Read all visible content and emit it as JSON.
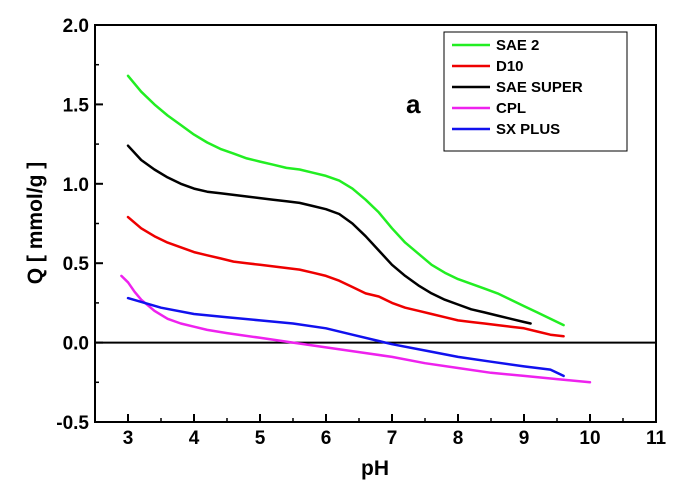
{
  "chart_data": {
    "type": "line",
    "xlabel": "pH",
    "ylabel": "Q  [ mmol/g ]",
    "xlim": [
      2.5,
      11
    ],
    "ylim": [
      -0.5,
      2.0
    ],
    "xticks": [
      3,
      4,
      5,
      6,
      7,
      8,
      9,
      10,
      11
    ],
    "yticks": [
      -0.5,
      0.0,
      0.5,
      1.0,
      1.5,
      2.0
    ],
    "xtick_labels": [
      "3",
      "4",
      "5",
      "6",
      "7",
      "8",
      "9",
      "10",
      "11"
    ],
    "ytick_labels": [
      "-0.5",
      "0.0",
      "0.5",
      "1.0",
      "1.5",
      "2.0"
    ],
    "zero_line": 0.0,
    "annotation": "a",
    "legend_position": "top-right",
    "series": [
      {
        "name": "SAE 2",
        "color": "#22ee22",
        "points": [
          [
            3.0,
            1.68
          ],
          [
            3.2,
            1.58
          ],
          [
            3.4,
            1.5
          ],
          [
            3.6,
            1.43
          ],
          [
            3.8,
            1.37
          ],
          [
            4.0,
            1.31
          ],
          [
            4.2,
            1.26
          ],
          [
            4.4,
            1.22
          ],
          [
            4.6,
            1.19
          ],
          [
            4.8,
            1.16
          ],
          [
            5.0,
            1.14
          ],
          [
            5.2,
            1.12
          ],
          [
            5.4,
            1.1
          ],
          [
            5.6,
            1.09
          ],
          [
            5.8,
            1.07
          ],
          [
            6.0,
            1.05
          ],
          [
            6.2,
            1.02
          ],
          [
            6.4,
            0.97
          ],
          [
            6.6,
            0.9
          ],
          [
            6.8,
            0.82
          ],
          [
            7.0,
            0.72
          ],
          [
            7.2,
            0.63
          ],
          [
            7.4,
            0.56
          ],
          [
            7.6,
            0.49
          ],
          [
            7.8,
            0.44
          ],
          [
            8.0,
            0.4
          ],
          [
            8.2,
            0.37
          ],
          [
            8.4,
            0.34
          ],
          [
            8.6,
            0.31
          ],
          [
            8.8,
            0.27
          ],
          [
            9.0,
            0.23
          ],
          [
            9.2,
            0.19
          ],
          [
            9.4,
            0.15
          ],
          [
            9.6,
            0.11
          ]
        ]
      },
      {
        "name": "D10",
        "color": "#ee0000",
        "points": [
          [
            3.0,
            0.79
          ],
          [
            3.2,
            0.72
          ],
          [
            3.4,
            0.67
          ],
          [
            3.6,
            0.63
          ],
          [
            3.8,
            0.6
          ],
          [
            4.0,
            0.57
          ],
          [
            4.2,
            0.55
          ],
          [
            4.4,
            0.53
          ],
          [
            4.6,
            0.51
          ],
          [
            4.8,
            0.5
          ],
          [
            5.0,
            0.49
          ],
          [
            5.2,
            0.48
          ],
          [
            5.4,
            0.47
          ],
          [
            5.6,
            0.46
          ],
          [
            5.8,
            0.44
          ],
          [
            6.0,
            0.42
          ],
          [
            6.2,
            0.39
          ],
          [
            6.4,
            0.35
          ],
          [
            6.6,
            0.31
          ],
          [
            6.8,
            0.29
          ],
          [
            7.0,
            0.25
          ],
          [
            7.2,
            0.22
          ],
          [
            7.4,
            0.2
          ],
          [
            7.6,
            0.18
          ],
          [
            7.8,
            0.16
          ],
          [
            8.0,
            0.14
          ],
          [
            8.2,
            0.13
          ],
          [
            8.4,
            0.12
          ],
          [
            8.6,
            0.11
          ],
          [
            8.8,
            0.1
          ],
          [
            9.0,
            0.09
          ],
          [
            9.2,
            0.07
          ],
          [
            9.4,
            0.05
          ],
          [
            9.6,
            0.04
          ]
        ]
      },
      {
        "name": "SAE SUPER",
        "color": "#000000",
        "points": [
          [
            3.0,
            1.24
          ],
          [
            3.2,
            1.15
          ],
          [
            3.4,
            1.09
          ],
          [
            3.6,
            1.04
          ],
          [
            3.8,
            1.0
          ],
          [
            4.0,
            0.97
          ],
          [
            4.2,
            0.95
          ],
          [
            4.4,
            0.94
          ],
          [
            4.6,
            0.93
          ],
          [
            4.8,
            0.92
          ],
          [
            5.0,
            0.91
          ],
          [
            5.2,
            0.9
          ],
          [
            5.4,
            0.89
          ],
          [
            5.6,
            0.88
          ],
          [
            5.8,
            0.86
          ],
          [
            6.0,
            0.84
          ],
          [
            6.2,
            0.81
          ],
          [
            6.4,
            0.75
          ],
          [
            6.6,
            0.67
          ],
          [
            6.8,
            0.58
          ],
          [
            7.0,
            0.49
          ],
          [
            7.2,
            0.42
          ],
          [
            7.4,
            0.36
          ],
          [
            7.6,
            0.31
          ],
          [
            7.8,
            0.27
          ],
          [
            8.0,
            0.24
          ],
          [
            8.2,
            0.21
          ],
          [
            8.4,
            0.19
          ],
          [
            8.6,
            0.17
          ],
          [
            8.8,
            0.15
          ],
          [
            9.0,
            0.13
          ],
          [
            9.1,
            0.12
          ]
        ]
      },
      {
        "name": "CPL",
        "color": "#ee22ee",
        "points": [
          [
            2.9,
            0.42
          ],
          [
            3.0,
            0.38
          ],
          [
            3.1,
            0.32
          ],
          [
            3.2,
            0.27
          ],
          [
            3.4,
            0.2
          ],
          [
            3.6,
            0.15
          ],
          [
            3.8,
            0.12
          ],
          [
            4.0,
            0.1
          ],
          [
            4.2,
            0.08
          ],
          [
            4.5,
            0.06
          ],
          [
            5.0,
            0.03
          ],
          [
            5.5,
            0.0
          ],
          [
            6.0,
            -0.03
          ],
          [
            6.5,
            -0.06
          ],
          [
            7.0,
            -0.09
          ],
          [
            7.5,
            -0.13
          ],
          [
            8.0,
            -0.16
          ],
          [
            8.5,
            -0.19
          ],
          [
            9.0,
            -0.21
          ],
          [
            9.5,
            -0.23
          ],
          [
            10.0,
            -0.25
          ]
        ]
      },
      {
        "name": "SX PLUS",
        "color": "#1111ee",
        "points": [
          [
            3.0,
            0.28
          ],
          [
            3.5,
            0.22
          ],
          [
            4.0,
            0.18
          ],
          [
            4.5,
            0.16
          ],
          [
            5.0,
            0.14
          ],
          [
            5.5,
            0.12
          ],
          [
            6.0,
            0.09
          ],
          [
            6.4,
            0.05
          ],
          [
            6.8,
            0.01
          ],
          [
            7.0,
            -0.01
          ],
          [
            7.5,
            -0.05
          ],
          [
            8.0,
            -0.09
          ],
          [
            8.5,
            -0.12
          ],
          [
            9.0,
            -0.15
          ],
          [
            9.4,
            -0.17
          ],
          [
            9.6,
            -0.21
          ]
        ]
      }
    ]
  }
}
